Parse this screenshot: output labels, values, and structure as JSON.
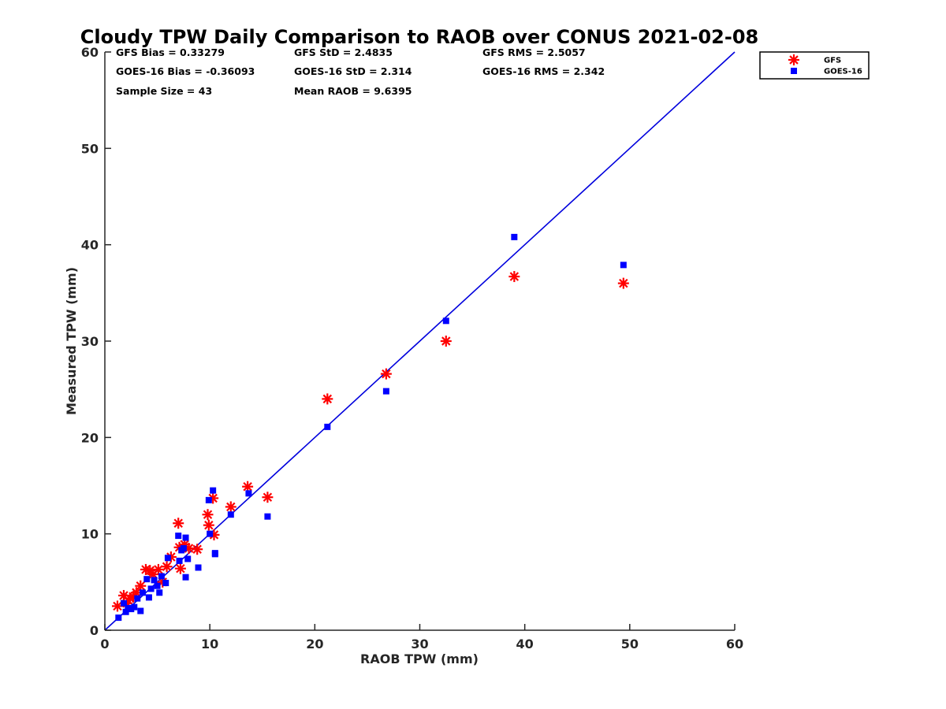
{
  "chart_data": {
    "type": "scatter",
    "title": "Cloudy TPW Daily Comparison to RAOB over CONUS 2021-02-08",
    "xlabel": "RAOB TPW (mm)",
    "ylabel": "Measured TPW (mm)",
    "xlim": [
      0,
      60
    ],
    "ylim": [
      0,
      60
    ],
    "xticks": [
      "0",
      "10",
      "20",
      "30",
      "40",
      "50",
      "60"
    ],
    "yticks": [
      "0",
      "10",
      "20",
      "30",
      "40",
      "50",
      "60"
    ],
    "grid": false,
    "legend_position": "top-right outside",
    "reference_line": {
      "type": "1:1",
      "color": "#0000dd"
    },
    "stats": [
      "GFS Bias = 0.33279",
      "GFS StD = 2.4835",
      "GFS RMS = 2.5057",
      "GOES-16 Bias = -0.36093",
      "GOES-16 StD = 2.314",
      "GOES-16 RMS = 2.342",
      "Sample Size = 43",
      "Mean RAOB = 9.6395"
    ],
    "series": [
      {
        "name": "GFS",
        "marker": "asterisk",
        "color": "#ff0000",
        "points": [
          [
            1.2,
            2.5
          ],
          [
            1.8,
            3.6
          ],
          [
            2.1,
            2.8
          ],
          [
            2.4,
            3.3
          ],
          [
            2.7,
            3.5
          ],
          [
            3.0,
            3.9
          ],
          [
            3.4,
            4.6
          ],
          [
            3.9,
            6.3
          ],
          [
            4.3,
            6.2
          ],
          [
            4.6,
            5.8
          ],
          [
            5.1,
            6.3
          ],
          [
            5.5,
            5.0
          ],
          [
            5.9,
            6.6
          ],
          [
            6.3,
            7.6
          ],
          [
            7.0,
            11.1
          ],
          [
            7.1,
            8.6
          ],
          [
            7.2,
            6.4
          ],
          [
            7.6,
            8.9
          ],
          [
            8.0,
            8.5
          ],
          [
            8.8,
            8.4
          ],
          [
            9.8,
            12.0
          ],
          [
            9.9,
            10.9
          ],
          [
            10.3,
            13.7
          ],
          [
            10.4,
            9.9
          ],
          [
            12.0,
            12.8
          ],
          [
            13.6,
            14.9
          ],
          [
            15.5,
            13.8
          ],
          [
            21.2,
            24.0
          ],
          [
            26.8,
            26.6
          ],
          [
            32.5,
            30.0
          ],
          [
            39.0,
            36.7
          ],
          [
            49.4,
            36.0
          ]
        ]
      },
      {
        "name": "GOES-16",
        "marker": "square",
        "color": "#0000ff",
        "points": [
          [
            1.3,
            1.3
          ],
          [
            1.8,
            2.8
          ],
          [
            2.0,
            1.9
          ],
          [
            2.2,
            2.3
          ],
          [
            2.5,
            2.2
          ],
          [
            2.8,
            2.4
          ],
          [
            3.1,
            3.3
          ],
          [
            3.4,
            2.0
          ],
          [
            3.6,
            3.9
          ],
          [
            4.0,
            5.3
          ],
          [
            4.2,
            3.4
          ],
          [
            4.4,
            4.3
          ],
          [
            4.7,
            5.2
          ],
          [
            5.0,
            4.6
          ],
          [
            5.2,
            3.9
          ],
          [
            5.4,
            5.6
          ],
          [
            5.8,
            4.9
          ],
          [
            6.0,
            7.5
          ],
          [
            7.0,
            9.8
          ],
          [
            7.1,
            7.2
          ],
          [
            7.3,
            8.3
          ],
          [
            7.5,
            8.5
          ],
          [
            7.7,
            5.5
          ],
          [
            7.7,
            9.6
          ],
          [
            7.9,
            7.4
          ],
          [
            8.9,
            6.5
          ],
          [
            9.9,
            13.5
          ],
          [
            10.0,
            10.0
          ],
          [
            10.3,
            14.5
          ],
          [
            10.5,
            8.0
          ],
          [
            10.5,
            7.9
          ],
          [
            12.0,
            12.0
          ],
          [
            13.7,
            14.2
          ],
          [
            15.5,
            11.8
          ],
          [
            21.2,
            21.1
          ],
          [
            26.8,
            24.8
          ],
          [
            32.5,
            32.1
          ],
          [
            39.0,
            40.8
          ],
          [
            49.4,
            37.9
          ]
        ]
      }
    ]
  }
}
